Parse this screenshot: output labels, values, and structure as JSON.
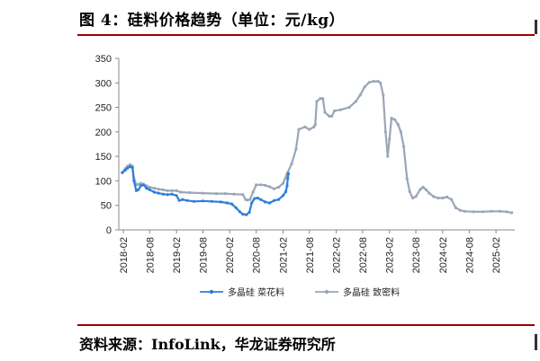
{
  "title": "图 4：硅料价格趋势（单位：元/kg）",
  "source": "资料来源：InfoLink，华龙证券研究所",
  "chart_data": {
    "type": "line",
    "title": "图 4：硅料价格趋势（单位：元/kg）",
    "xlabel": "",
    "ylabel": "",
    "ylim": [
      0,
      350
    ],
    "yticks": [
      "0",
      "50",
      "100",
      "150",
      "200",
      "250",
      "300",
      "350"
    ],
    "xticks": [
      "2018-02",
      "2018-08",
      "2019-02",
      "2019-08",
      "2020-02",
      "2020-08",
      "2021-02",
      "2021-08",
      "2022-02",
      "2022-08",
      "2023-02",
      "2023-08",
      "2024-02",
      "2024-08",
      "2025-02"
    ],
    "grid": false,
    "legend_position": "bottom",
    "series": [
      {
        "name": "多晶硅 菜花料",
        "color": "#2f7ed8",
        "marker": "circle",
        "points": [
          [
            "2018-01-25",
            117
          ],
          [
            "2018-02-15",
            122
          ],
          [
            "2018-03-01",
            126
          ],
          [
            "2018-03-20",
            129
          ],
          [
            "2018-04-05",
            127
          ],
          [
            "2018-04-15",
            100
          ],
          [
            "2018-05-01",
            80
          ],
          [
            "2018-05-15",
            82
          ],
          [
            "2018-06-01",
            90
          ],
          [
            "2018-06-20",
            92
          ],
          [
            "2018-07-10",
            85
          ],
          [
            "2018-08-01",
            82
          ],
          [
            "2018-09-01",
            77
          ],
          [
            "2018-10-01",
            75
          ],
          [
            "2018-11-01",
            73
          ],
          [
            "2018-12-01",
            72
          ],
          [
            "2019-01-01",
            73
          ],
          [
            "2019-02-01",
            70
          ],
          [
            "2019-02-20",
            60
          ],
          [
            "2019-03-15",
            62
          ],
          [
            "2019-04-15",
            60
          ],
          [
            "2019-06-01",
            58
          ],
          [
            "2019-08-01",
            59
          ],
          [
            "2019-10-01",
            58
          ],
          [
            "2019-12-01",
            57
          ],
          [
            "2020-01-15",
            55
          ],
          [
            "2020-02-15",
            53
          ],
          [
            "2020-03-15",
            45
          ],
          [
            "2020-04-10",
            37
          ],
          [
            "2020-05-01",
            32
          ],
          [
            "2020-05-25",
            31
          ],
          [
            "2020-06-15",
            36
          ],
          [
            "2020-07-01",
            55
          ],
          [
            "2020-07-20",
            64
          ],
          [
            "2020-08-10",
            65
          ],
          [
            "2020-09-01",
            62
          ],
          [
            "2020-10-01",
            57
          ],
          [
            "2020-11-01",
            55
          ],
          [
            "2020-12-01",
            60
          ],
          [
            "2021-01-01",
            62
          ],
          [
            "2021-02-01",
            70
          ],
          [
            "2021-02-20",
            78
          ],
          [
            "2021-03-01",
            90
          ],
          [
            "2021-03-05",
            105
          ],
          [
            "2021-03-10",
            115
          ]
        ]
      },
      {
        "name": "多晶硅 致密料",
        "color": "#9aa6b8",
        "marker": "circle",
        "points": [
          [
            "2018-01-25",
            117
          ],
          [
            "2018-02-15",
            125
          ],
          [
            "2018-03-01",
            130
          ],
          [
            "2018-03-20",
            133
          ],
          [
            "2018-04-05",
            130
          ],
          [
            "2018-04-15",
            105
          ],
          [
            "2018-05-01",
            92
          ],
          [
            "2018-05-15",
            93
          ],
          [
            "2018-06-01",
            95
          ],
          [
            "2018-06-20",
            93
          ],
          [
            "2018-07-10",
            90
          ],
          [
            "2018-08-01",
            87
          ],
          [
            "2018-09-01",
            85
          ],
          [
            "2018-10-01",
            83
          ],
          [
            "2018-11-01",
            82
          ],
          [
            "2018-12-01",
            80
          ],
          [
            "2019-01-01",
            80
          ],
          [
            "2019-02-01",
            80
          ],
          [
            "2019-03-01",
            77
          ],
          [
            "2019-05-01",
            76
          ],
          [
            "2019-08-01",
            75
          ],
          [
            "2019-11-01",
            74
          ],
          [
            "2020-01-01",
            74
          ],
          [
            "2020-03-01",
            73
          ],
          [
            "2020-05-01",
            72
          ],
          [
            "2020-05-20",
            62
          ],
          [
            "2020-06-01",
            61
          ],
          [
            "2020-06-20",
            62
          ],
          [
            "2020-07-10",
            77
          ],
          [
            "2020-08-01",
            92
          ],
          [
            "2020-09-01",
            92
          ],
          [
            "2020-10-01",
            91
          ],
          [
            "2020-11-01",
            88
          ],
          [
            "2020-12-01",
            84
          ],
          [
            "2021-01-01",
            87
          ],
          [
            "2021-02-01",
            95
          ],
          [
            "2021-03-01",
            115
          ],
          [
            "2021-04-01",
            135
          ],
          [
            "2021-05-01",
            165
          ],
          [
            "2021-05-20",
            205
          ],
          [
            "2021-07-01",
            210
          ],
          [
            "2021-08-01",
            205
          ],
          [
            "2021-09-01",
            210
          ],
          [
            "2021-09-10",
            215
          ],
          [
            "2021-09-20",
            262
          ],
          [
            "2021-10-15",
            268
          ],
          [
            "2021-11-01",
            268
          ],
          [
            "2021-11-15",
            240
          ],
          [
            "2021-12-15",
            232
          ],
          [
            "2022-01-01",
            232
          ],
          [
            "2022-01-20",
            243
          ],
          [
            "2022-03-01",
            245
          ],
          [
            "2022-05-01",
            250
          ],
          [
            "2022-06-15",
            262
          ],
          [
            "2022-07-15",
            275
          ],
          [
            "2022-08-15",
            292
          ],
          [
            "2022-09-15",
            301
          ],
          [
            "2022-10-15",
            303
          ],
          [
            "2022-11-15",
            303
          ],
          [
            "2022-12-01",
            300
          ],
          [
            "2022-12-20",
            275
          ],
          [
            "2023-01-05",
            200
          ],
          [
            "2023-01-20",
            150
          ],
          [
            "2023-02-01",
            185
          ],
          [
            "2023-02-15",
            228
          ],
          [
            "2023-03-10",
            225
          ],
          [
            "2023-04-01",
            215
          ],
          [
            "2023-04-20",
            200
          ],
          [
            "2023-05-10",
            170
          ],
          [
            "2023-06-01",
            105
          ],
          [
            "2023-06-20",
            78
          ],
          [
            "2023-07-10",
            65
          ],
          [
            "2023-08-01",
            68
          ],
          [
            "2023-09-01",
            83
          ],
          [
            "2023-09-20",
            87
          ],
          [
            "2023-10-10",
            82
          ],
          [
            "2023-11-01",
            75
          ],
          [
            "2023-12-01",
            68
          ],
          [
            "2024-01-01",
            65
          ],
          [
            "2024-02-01",
            65
          ],
          [
            "2024-03-01",
            67
          ],
          [
            "2024-04-01",
            62
          ],
          [
            "2024-05-01",
            45
          ],
          [
            "2024-06-01",
            40
          ],
          [
            "2024-07-01",
            38
          ],
          [
            "2024-09-01",
            37
          ],
          [
            "2024-11-01",
            37
          ],
          [
            "2025-01-01",
            38
          ],
          [
            "2025-03-01",
            38
          ],
          [
            "2025-04-15",
            37
          ],
          [
            "2025-05-20",
            35
          ]
        ]
      }
    ]
  }
}
